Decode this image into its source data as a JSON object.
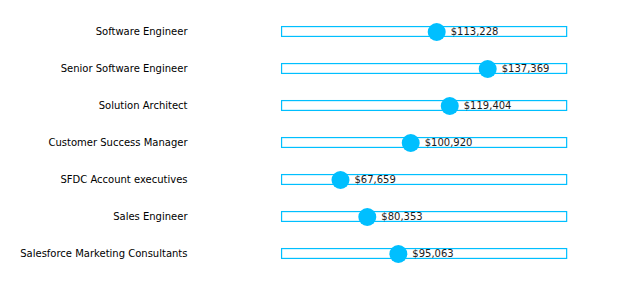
{
  "chart_data": {
    "type": "dot",
    "orientation": "horizontal",
    "categories": [
      "Software Engineer",
      "Senior Software Engineer",
      "Solution Architect",
      "Customer Success Manager",
      "SFDC Account executives",
      "Sales Engineer",
      "Salesforce Marketing Consultants"
    ],
    "values": [
      113228,
      137369,
      119404,
      100920,
      67659,
      80353,
      95063
    ],
    "value_labels": [
      "$113,228",
      "$137,369",
      "$119,404",
      "$100,920",
      "$67,659",
      "$80,353",
      "$95,063"
    ],
    "range": [
      40000,
      175000
    ],
    "color": "#00bfff",
    "xlim": [
      -1000,
      205000
    ],
    "data_labels": true,
    "tick_labels": "y",
    "grid": false
  }
}
